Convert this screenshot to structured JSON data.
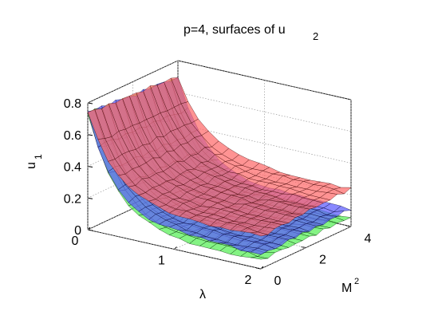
{
  "chart_data": {
    "type": "surface3d",
    "title": {
      "main": "p=4, surfaces of u",
      "subscript": "2"
    },
    "xlabel": "λ",
    "ylabel": {
      "base": "M",
      "superscript": "2"
    },
    "zlabel": {
      "base": "u",
      "subscript": "1"
    },
    "xlim": [
      0,
      2
    ],
    "ylim": [
      0,
      4
    ],
    "zlim": [
      0,
      0.8
    ],
    "xticks": [
      "0",
      "1",
      "2"
    ],
    "yticks": [
      "0",
      "2",
      "4"
    ],
    "zticks": [
      "0",
      "0.2",
      "0.4",
      "0.6",
      "0.8"
    ],
    "grid": true,
    "series": [
      {
        "color": "#ff6a6a",
        "edge": "#3a0000"
      },
      {
        "color": "#5a5aff",
        "edge": "#000033"
      },
      {
        "color": "#55ee55",
        "edge": "#002200"
      }
    ]
  }
}
